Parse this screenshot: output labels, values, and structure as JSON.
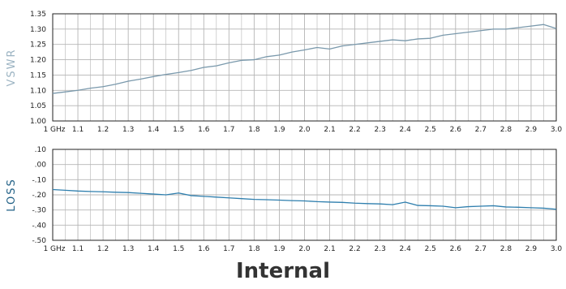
{
  "caption": "Internal",
  "colors": {
    "vswr_line": "#7a99ac",
    "loss_line": "#2f7fae",
    "grid": "#b5b5b5",
    "frame": "#222222",
    "vswr_label": "#9bb3c2",
    "loss_label": "#1f5f85",
    "caption": "#333333"
  },
  "chart_data": [
    {
      "type": "line",
      "ylabel": "VSWR",
      "xlim": [
        1.0,
        3.0
      ],
      "ylim": [
        1.0,
        1.35
      ],
      "grid": true,
      "x_ticks": [
        1.0,
        1.1,
        1.2,
        1.3,
        1.4,
        1.5,
        1.6,
        1.7,
        1.8,
        1.9,
        2.0,
        2.1,
        2.2,
        2.3,
        2.4,
        2.5,
        2.6,
        2.7,
        2.8,
        2.9,
        3.0
      ],
      "x_tick_labels": [
        "1 GHz",
        "1.1",
        "1.2",
        "1.3",
        "1.4",
        "1.5",
        "1.6",
        "1.7",
        "1.8",
        "1.9",
        "2.0",
        "2.1",
        "2.2",
        "2.3",
        "2.4",
        "2.5",
        "2.6",
        "2.7",
        "2.8",
        "2.9",
        "3.0"
      ],
      "y_ticks": [
        1.0,
        1.05,
        1.1,
        1.15,
        1.2,
        1.25,
        1.3,
        1.35
      ],
      "y_tick_labels": [
        "1.00",
        "1.05",
        "1.10",
        "1.15",
        "1.20",
        "1.25",
        "1.30",
        "1.35"
      ],
      "series": [
        {
          "x": [
            1.0,
            1.05,
            1.1,
            1.15,
            1.2,
            1.25,
            1.3,
            1.35,
            1.4,
            1.45,
            1.5,
            1.55,
            1.6,
            1.65,
            1.7,
            1.75,
            1.8,
            1.85,
            1.9,
            1.95,
            2.0,
            2.05,
            2.1,
            2.15,
            2.2,
            2.25,
            2.3,
            2.35,
            2.4,
            2.45,
            2.5,
            2.55,
            2.6,
            2.65,
            2.7,
            2.75,
            2.8,
            2.85,
            2.9,
            2.95,
            3.0
          ],
          "values": [
            1.09,
            1.095,
            1.1,
            1.107,
            1.112,
            1.12,
            1.13,
            1.137,
            1.145,
            1.152,
            1.158,
            1.165,
            1.175,
            1.18,
            1.19,
            1.198,
            1.2,
            1.21,
            1.215,
            1.225,
            1.232,
            1.24,
            1.235,
            1.245,
            1.25,
            1.255,
            1.26,
            1.265,
            1.262,
            1.268,
            1.27,
            1.28,
            1.285,
            1.29,
            1.295,
            1.3,
            1.3,
            1.305,
            1.31,
            1.315,
            1.302
          ]
        }
      ]
    },
    {
      "type": "line",
      "ylabel": "LOSS",
      "xlim": [
        1.0,
        3.0
      ],
      "ylim": [
        -0.5,
        0.1
      ],
      "grid": true,
      "x_ticks": [
        1.0,
        1.1,
        1.2,
        1.3,
        1.4,
        1.5,
        1.6,
        1.7,
        1.8,
        1.9,
        2.0,
        2.1,
        2.2,
        2.3,
        2.4,
        2.5,
        2.6,
        2.7,
        2.8,
        2.9,
        3.0
      ],
      "x_tick_labels": [
        "1 GHz",
        "1.1",
        "1.2",
        "1.3",
        "1.4",
        "1.5",
        "1.6",
        "1.7",
        "1.8",
        "1.9",
        "2.0",
        "2.1",
        "2.2",
        "2.3",
        "2.4",
        "2.5",
        "2.6",
        "2.7",
        "2.8",
        "2.9",
        "3.0"
      ],
      "y_ticks": [
        0.1,
        0.0,
        -0.1,
        -0.2,
        -0.3,
        -0.4,
        -0.5
      ],
      "y_tick_labels": [
        ".10",
        ".00",
        "-.10",
        "-.20",
        "-.30",
        "-.40",
        "-.50"
      ],
      "series": [
        {
          "x": [
            1.0,
            1.05,
            1.1,
            1.15,
            1.2,
            1.25,
            1.3,
            1.35,
            1.4,
            1.45,
            1.5,
            1.55,
            1.6,
            1.65,
            1.7,
            1.75,
            1.8,
            1.85,
            1.9,
            1.95,
            2.0,
            2.05,
            2.1,
            2.15,
            2.2,
            2.25,
            2.3,
            2.35,
            2.4,
            2.45,
            2.5,
            2.55,
            2.6,
            2.65,
            2.7,
            2.75,
            2.8,
            2.85,
            2.9,
            2.95,
            3.0
          ],
          "values": [
            -0.165,
            -0.17,
            -0.175,
            -0.178,
            -0.18,
            -0.183,
            -0.185,
            -0.19,
            -0.195,
            -0.2,
            -0.188,
            -0.205,
            -0.21,
            -0.215,
            -0.22,
            -0.225,
            -0.23,
            -0.232,
            -0.235,
            -0.238,
            -0.24,
            -0.245,
            -0.248,
            -0.25,
            -0.255,
            -0.258,
            -0.26,
            -0.265,
            -0.248,
            -0.27,
            -0.272,
            -0.275,
            -0.285,
            -0.278,
            -0.275,
            -0.272,
            -0.28,
            -0.282,
            -0.285,
            -0.288,
            -0.295
          ]
        }
      ]
    }
  ]
}
